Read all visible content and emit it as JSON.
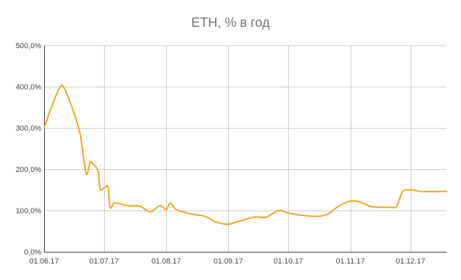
{
  "chart_data": {
    "type": "line",
    "title": "ETH, % в год",
    "xlabel": "",
    "ylabel": "",
    "ylim": [
      0,
      500
    ],
    "y_ticks": [
      0,
      100,
      200,
      300,
      400,
      500
    ],
    "y_tick_labels": [
      "0,0%",
      "100,0%",
      "200,0%",
      "300,0%",
      "400,0%",
      "500,0%"
    ],
    "x_range": [
      "2017-06-01",
      "2017-12-19"
    ],
    "x_ticks": [
      "2017-06-01",
      "2017-07-01",
      "2017-08-01",
      "2017-09-01",
      "2017-10-01",
      "2017-11-01",
      "2017-12-01"
    ],
    "x_tick_labels": [
      "01.06.17",
      "01.07.17",
      "01.08.17",
      "01.09.17",
      "01.10.17",
      "01.11.17",
      "01.12.17"
    ],
    "grid": true,
    "legend": "none",
    "series": [
      {
        "color": "#f4a117",
        "x": [
          "2017-06-01",
          "2017-06-05",
          "2017-06-09",
          "2017-06-11",
          "2017-06-13",
          "2017-06-16",
          "2017-06-19",
          "2017-06-22",
          "2017-06-24",
          "2017-06-25",
          "2017-06-26",
          "2017-06-28",
          "2017-06-29",
          "2017-07-01",
          "2017-07-02",
          "2017-07-03",
          "2017-07-04",
          "2017-07-06",
          "2017-07-09",
          "2017-07-10",
          "2017-07-11",
          "2017-07-14",
          "2017-07-19",
          "2017-07-24",
          "2017-07-29",
          "2017-08-01",
          "2017-08-03",
          "2017-08-06",
          "2017-08-10",
          "2017-08-13",
          "2017-08-17",
          "2017-08-21",
          "2017-08-26",
          "2017-09-01",
          "2017-09-07",
          "2017-09-14",
          "2017-09-20",
          "2017-09-26",
          "2017-10-01",
          "2017-10-07",
          "2017-10-14",
          "2017-10-20",
          "2017-10-26",
          "2017-11-01",
          "2017-11-06",
          "2017-11-11",
          "2017-11-15",
          "2017-11-18",
          "2017-11-21",
          "2017-11-24",
          "2017-11-27",
          "2017-11-30",
          "2017-12-03",
          "2017-12-06",
          "2017-12-08",
          "2017-12-11",
          "2017-12-14",
          "2017-12-19"
        ],
        "values": [
          300,
          355,
          400,
          397,
          375,
          335,
          285,
          190,
          218,
          215,
          210,
          195,
          152,
          155,
          158,
          156,
          107,
          118,
          116,
          114,
          113,
          111,
          110,
          97,
          112,
          102,
          118,
          102,
          96,
          92,
          89,
          85,
          72,
          67,
          75,
          84,
          84,
          100,
          94,
          89,
          86,
          90,
          110,
          123,
          120,
          110,
          108,
          108,
          108,
          110,
          145,
          150,
          149,
          146,
          146,
          146,
          146,
          146
        ]
      }
    ]
  }
}
